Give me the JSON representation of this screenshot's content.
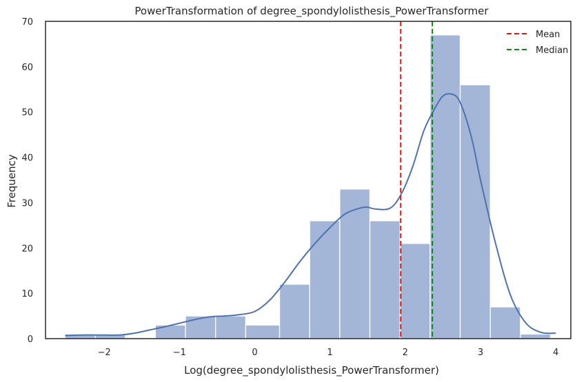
{
  "chart_data": {
    "type": "bar",
    "title": "PowerTransformation of degree_spondylolisthesis_PowerTransformer",
    "xlabel": "Log(degree_spondylolisthesis_PowerTransformer)",
    "ylabel": "Frequency",
    "xlim": [
      -2.78,
      4.2
    ],
    "ylim": [
      0,
      70
    ],
    "x_ticks": [
      -2,
      -1,
      0,
      1,
      2,
      3,
      4
    ],
    "x_tick_labels": [
      "−2",
      "−1",
      "0",
      "1",
      "2",
      "3",
      "4"
    ],
    "y_ticks": [
      0,
      10,
      20,
      30,
      40,
      50,
      60,
      70
    ],
    "y_tick_labels": [
      "0",
      "10",
      "20",
      "30",
      "40",
      "50",
      "60",
      "70"
    ],
    "grid": false,
    "bins": [
      {
        "x0": -2.52,
        "x1": -2.12,
        "count": 1
      },
      {
        "x0": -2.12,
        "x1": -1.72,
        "count": 1
      },
      {
        "x0": -1.72,
        "x1": -1.32,
        "count": 0
      },
      {
        "x0": -1.32,
        "x1": -0.92,
        "count": 3
      },
      {
        "x0": -0.92,
        "x1": -0.52,
        "count": 5
      },
      {
        "x0": -0.52,
        "x1": -0.12,
        "count": 5
      },
      {
        "x0": -0.12,
        "x1": 0.33,
        "count": 3
      },
      {
        "x0": 0.33,
        "x1": 0.73,
        "count": 12
      },
      {
        "x0": 0.73,
        "x1": 1.13,
        "count": 26
      },
      {
        "x0": 1.13,
        "x1": 1.53,
        "count": 33
      },
      {
        "x0": 1.53,
        "x1": 1.93,
        "count": 26
      },
      {
        "x0": 1.93,
        "x1": 2.33,
        "count": 21
      },
      {
        "x0": 2.33,
        "x1": 2.73,
        "count": 67
      },
      {
        "x0": 2.73,
        "x1": 3.13,
        "count": 56
      },
      {
        "x0": 3.13,
        "x1": 3.53,
        "count": 7
      },
      {
        "x0": 3.53,
        "x1": 3.93,
        "count": 1
      }
    ],
    "kde": {
      "x": [
        -2.52,
        -2.3,
        -2.0,
        -1.8,
        -1.6,
        -1.4,
        -1.2,
        -1.0,
        -0.8,
        -0.6,
        -0.4,
        -0.2,
        0.0,
        0.2,
        0.4,
        0.6,
        0.8,
        1.0,
        1.2,
        1.4,
        1.5,
        1.6,
        1.8,
        1.95,
        2.1,
        2.25,
        2.4,
        2.5,
        2.6,
        2.7,
        2.8,
        2.9,
        3.0,
        3.2,
        3.4,
        3.6,
        3.8,
        4.0
      ],
      "y": [
        0.7,
        0.8,
        0.8,
        0.8,
        1.2,
        1.9,
        2.6,
        3.4,
        4.2,
        4.8,
        5.0,
        5.3,
        6.0,
        8.5,
        12.5,
        17.0,
        21.0,
        24.5,
        27.5,
        28.8,
        29.0,
        28.6,
        28.8,
        32.0,
        38.0,
        46.0,
        51.0,
        53.5,
        54.0,
        53.0,
        49.0,
        43.0,
        35.0,
        21.0,
        9.5,
        3.5,
        1.4,
        1.2
      ]
    },
    "colors": {
      "bar_fill": "#a4b6d7",
      "bar_edge": "#ffffff",
      "kde_line": "#4c72b0",
      "mean_line": "#e3120b",
      "median_line": "#0a8a0a",
      "axes_edge": "#262626"
    },
    "vlines": [
      {
        "name": "Mean",
        "x": 1.94,
        "color": "#e3120b"
      },
      {
        "name": "Median",
        "x": 2.36,
        "color": "#0a8a0a"
      }
    ],
    "legend": {
      "position": "top-right",
      "entries": [
        {
          "label": "Mean",
          "color": "#e3120b"
        },
        {
          "label": "Median",
          "color": "#0a8a0a"
        }
      ]
    }
  }
}
